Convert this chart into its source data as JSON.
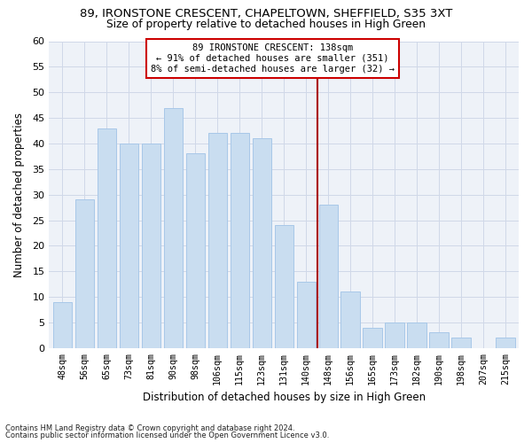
{
  "title1": "89, IRONSTONE CRESCENT, CHAPELTOWN, SHEFFIELD, S35 3XT",
  "title2": "Size of property relative to detached houses in High Green",
  "xlabel": "Distribution of detached houses by size in High Green",
  "ylabel": "Number of detached properties",
  "categories": [
    "48sqm",
    "56sqm",
    "65sqm",
    "73sqm",
    "81sqm",
    "90sqm",
    "98sqm",
    "106sqm",
    "115sqm",
    "123sqm",
    "131sqm",
    "140sqm",
    "148sqm",
    "156sqm",
    "165sqm",
    "173sqm",
    "182sqm",
    "190sqm",
    "198sqm",
    "207sqm",
    "215sqm"
  ],
  "values": [
    9,
    29,
    43,
    40,
    40,
    47,
    38,
    42,
    42,
    41,
    24,
    13,
    28,
    11,
    4,
    5,
    5,
    3,
    2,
    0,
    2
  ],
  "bar_color": "#c9ddf0",
  "bar_edge_color": "#a8c8e8",
  "grid_color": "#d0d8e8",
  "vline_x": 11.5,
  "vline_color": "#aa0000",
  "annotation_line1": "89 IRONSTONE CRESCENT: 138sqm",
  "annotation_line2": "← 91% of detached houses are smaller (351)",
  "annotation_line3": "8% of semi-detached houses are larger (32) →",
  "annotation_box_color": "#ffffff",
  "annotation_edge_color": "#cc0000",
  "footer1": "Contains HM Land Registry data © Crown copyright and database right 2024.",
  "footer2": "Contains public sector information licensed under the Open Government Licence v3.0.",
  "ylim": [
    0,
    60
  ],
  "yticks": [
    0,
    5,
    10,
    15,
    20,
    25,
    30,
    35,
    40,
    45,
    50,
    55,
    60
  ],
  "background_color": "#eef2f8",
  "fig_width": 6.0,
  "fig_height": 5.0,
  "dpi": 100
}
